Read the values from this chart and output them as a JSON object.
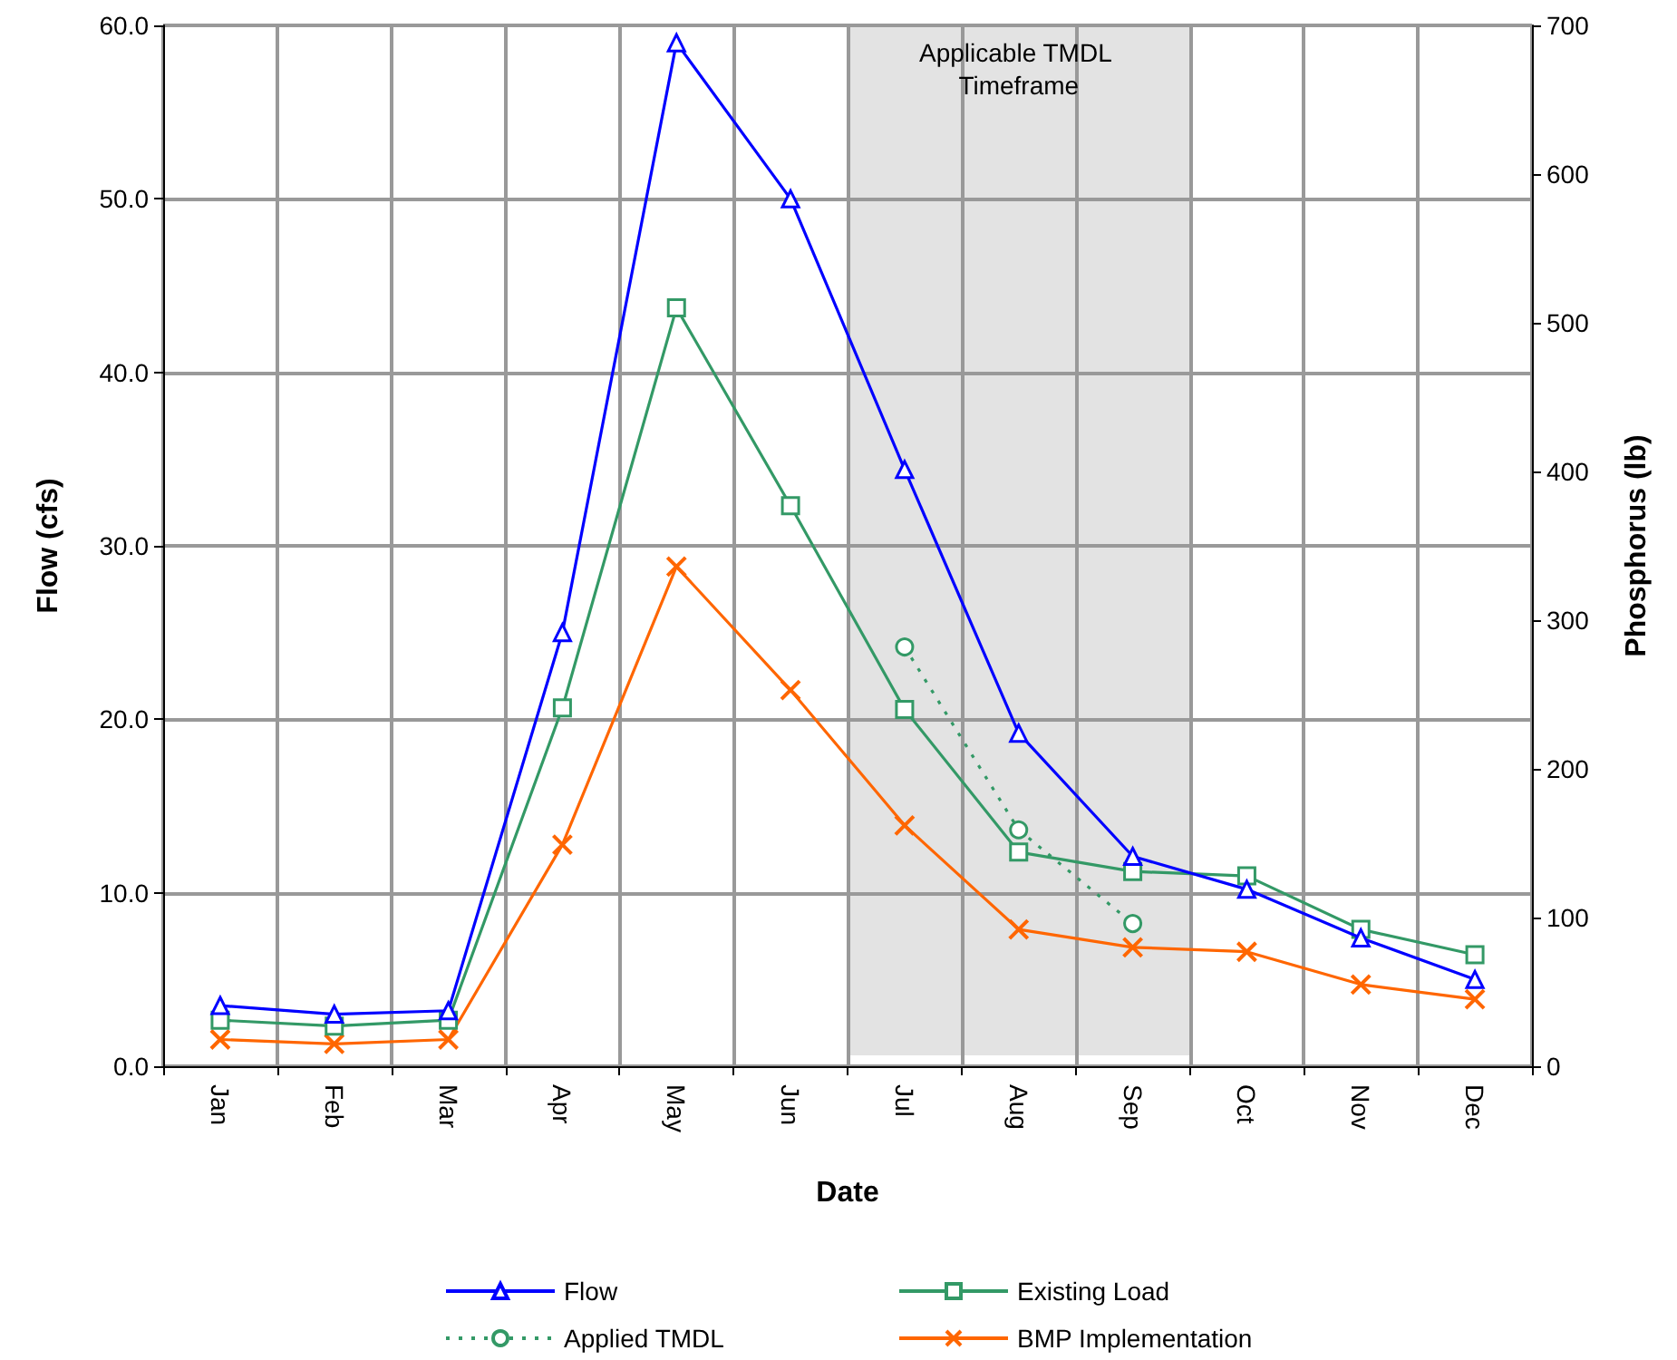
{
  "chart_data": {
    "type": "line",
    "xlabel": "Date",
    "ylabel": "Flow (cfs)",
    "y2label": "Phosphorus (lb)",
    "categories": [
      "Jan",
      "Feb",
      "Mar",
      "Apr",
      "May",
      "Jun",
      "Jul",
      "Aug",
      "Sep",
      "Oct",
      "Nov",
      "Dec"
    ],
    "series": [
      {
        "name": "Flow",
        "color": "#0000ff",
        "marker": "triangle",
        "line_style": "solid",
        "values": [
          3.5,
          3.0,
          3.2,
          25.0,
          59.0,
          50.0,
          34.4,
          19.2,
          12.1,
          10.2,
          7.4,
          5.0
        ]
      },
      {
        "name": "Existing Load",
        "color": "#339966",
        "marker": "square",
        "line_style": "solid",
        "axis": "y2",
        "values": [
          31,
          27,
          31,
          241,
          510,
          377,
          240,
          144,
          131,
          128,
          92,
          75
        ]
      },
      {
        "name": "Applied TMDL",
        "color": "#339966",
        "marker": "circle",
        "line_style": "dotted",
        "axis": "y2",
        "values": [
          null,
          null,
          null,
          null,
          null,
          null,
          282,
          159,
          96,
          null,
          null,
          null
        ]
      },
      {
        "name": "BMP Implementation",
        "color": "#ff6600",
        "marker": "cross",
        "line_style": "solid",
        "axis": "y2",
        "values": [
          18,
          15,
          18,
          149,
          336,
          253,
          162,
          92,
          80,
          77,
          55,
          45
        ]
      }
    ],
    "ylim": [
      0,
      60
    ],
    "yticks": [
      {
        "value": 0,
        "label": "0.0"
      },
      {
        "value": 10,
        "label": "10.0"
      },
      {
        "value": 20,
        "label": "20.0"
      },
      {
        "value": 30,
        "label": "30.0"
      },
      {
        "value": 40,
        "label": "40.0"
      },
      {
        "value": 50,
        "label": "50.0"
      },
      {
        "value": 60,
        "label": "60.0"
      }
    ],
    "y2lim": [
      0,
      700
    ],
    "y2ticks": [
      0,
      100,
      200,
      300,
      400,
      500,
      600,
      700
    ],
    "bands": [
      {
        "axis": "x",
        "from": "Jul",
        "to": "Sep",
        "label": "Applicable TMDL Timeframe",
        "color": "#e0e0e0"
      }
    ],
    "grid": true,
    "legend": "bottom"
  }
}
